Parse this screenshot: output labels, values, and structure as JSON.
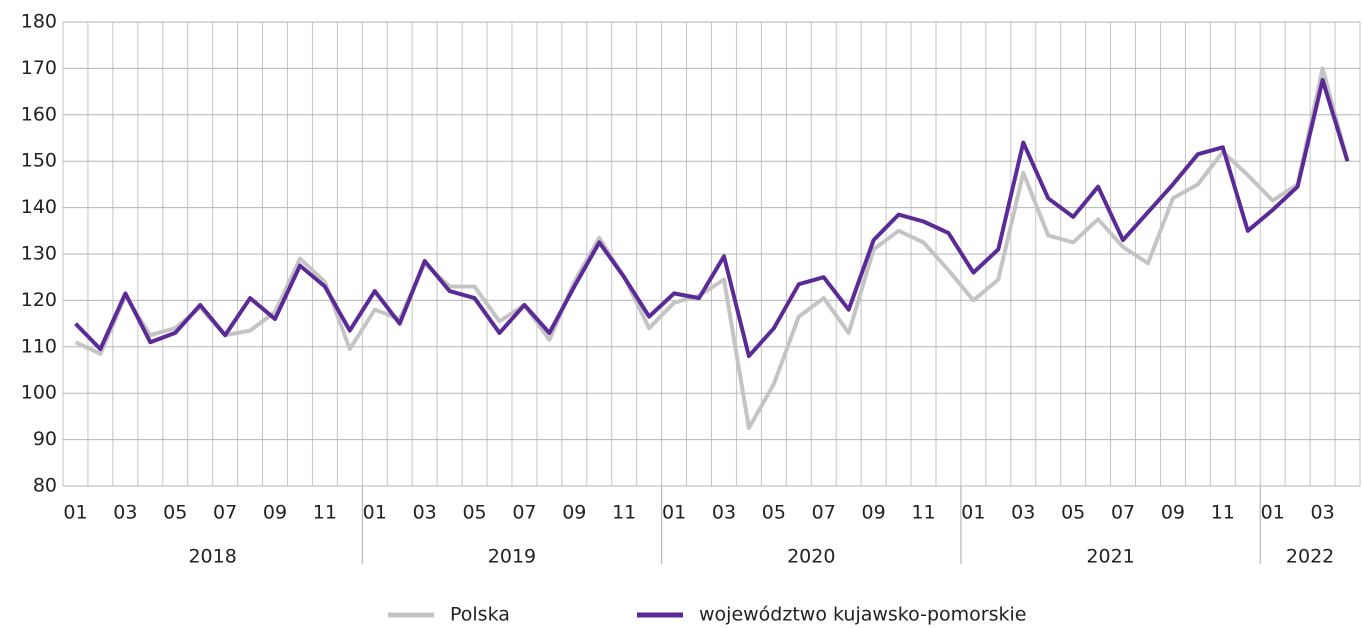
{
  "chart_data": {
    "type": "line",
    "categories": [
      "01",
      null,
      "03",
      null,
      "05",
      null,
      "07",
      null,
      "09",
      null,
      "11",
      null,
      "01",
      null,
      "03",
      null,
      "05",
      null,
      "07",
      null,
      "09",
      null,
      "11",
      null,
      "01",
      null,
      "03",
      null,
      "05",
      null,
      "07",
      null,
      "09",
      null,
      "11",
      null,
      "01",
      null,
      "03",
      null,
      "05",
      null,
      "07",
      null,
      "09",
      null,
      "11",
      null,
      "01",
      null,
      "03",
      null
    ],
    "years": [
      "2018",
      "2019",
      "2020",
      "2021",
      "2022"
    ],
    "series": [
      {
        "name": "Polska",
        "color": "#c4c4c4",
        "values": [
          111,
          108.5,
          121,
          112.5,
          114,
          118.5,
          112.5,
          113.5,
          117.5,
          129,
          124,
          109.5,
          118,
          116,
          128,
          123,
          123,
          115.5,
          119,
          111.5,
          124,
          133.5,
          125,
          114,
          119.5,
          121,
          124.5,
          92.5,
          102,
          116.5,
          120.5,
          113,
          131,
          135,
          132.5,
          126.5,
          120,
          124.5,
          147.5,
          134,
          132.5,
          137.5,
          131.5,
          128,
          142,
          145,
          152,
          147,
          141.5,
          145,
          170,
          150
        ]
      },
      {
        "name": "województwo kujawsko-pomorskie",
        "color": "#5b2a96",
        "values": [
          115,
          109.5,
          121.5,
          111,
          113,
          119,
          112.5,
          120.5,
          116,
          127.5,
          123,
          113.5,
          122,
          115,
          128.5,
          122,
          120.5,
          113,
          119,
          113,
          123,
          132.5,
          125,
          116.5,
          121.5,
          120.5,
          129.5,
          108,
          114,
          123.5,
          125,
          118,
          133,
          138.5,
          137,
          134.5,
          126,
          131,
          154,
          142,
          138,
          144.5,
          133,
          139,
          145,
          151.5,
          153,
          135,
          139.5,
          144.5,
          167.5,
          150
        ]
      }
    ],
    "ylim": [
      80,
      180
    ],
    "yticks": [
      80,
      90,
      100,
      110,
      120,
      130,
      140,
      150,
      160,
      170,
      180
    ],
    "grid": true,
    "legend": "bottom"
  }
}
